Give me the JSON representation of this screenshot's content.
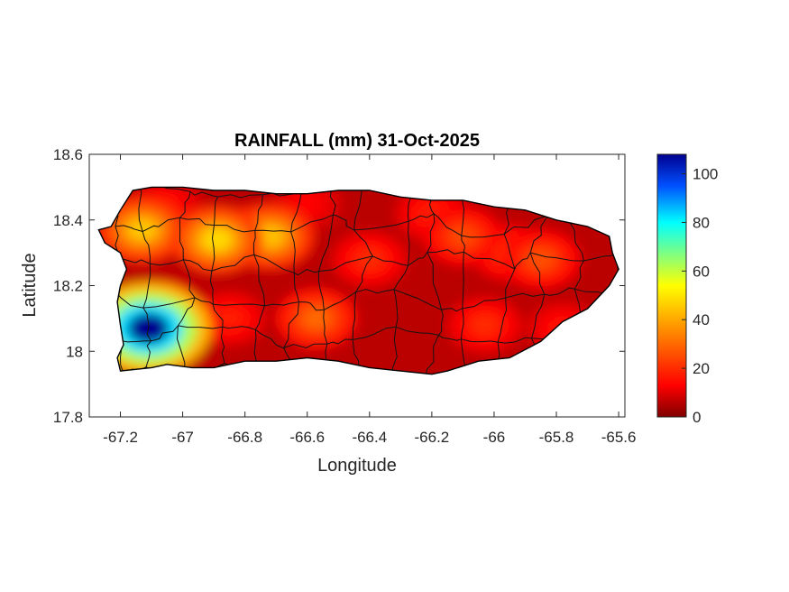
{
  "chart_data": {
    "type": "heatmap",
    "title": "RAINFALL (mm) 31-Oct-2025",
    "xlabel": "Longitude",
    "ylabel": "Latitude",
    "xlim": [
      -67.3,
      -65.58
    ],
    "ylim": [
      17.8,
      18.6
    ],
    "xticks": [
      -67.2,
      -67,
      -66.8,
      -66.6,
      -66.4,
      -66.2,
      -66,
      -65.8,
      -65.6
    ],
    "yticks": [
      17.8,
      18,
      18.2,
      18.4,
      18.6
    ],
    "colorbar": {
      "range": [
        0,
        108
      ],
      "ticks": [
        0,
        20,
        40,
        60,
        80,
        100
      ],
      "colormap": "jet (reversed)"
    },
    "region_outline": [
      [
        -67.27,
        18.37
      ],
      [
        -67.23,
        18.38
      ],
      [
        -67.2,
        18.43
      ],
      [
        -67.16,
        18.49
      ],
      [
        -67.1,
        18.5
      ],
      [
        -67.0,
        18.5
      ],
      [
        -66.9,
        18.49
      ],
      [
        -66.8,
        18.49
      ],
      [
        -66.7,
        18.48
      ],
      [
        -66.6,
        18.48
      ],
      [
        -66.5,
        18.49
      ],
      [
        -66.4,
        18.49
      ],
      [
        -66.3,
        18.47
      ],
      [
        -66.2,
        18.46
      ],
      [
        -66.1,
        18.46
      ],
      [
        -66.0,
        18.44
      ],
      [
        -65.9,
        18.43
      ],
      [
        -65.8,
        18.4
      ],
      [
        -65.7,
        18.38
      ],
      [
        -65.63,
        18.35
      ],
      [
        -65.62,
        18.3
      ],
      [
        -65.6,
        18.25
      ],
      [
        -65.63,
        18.2
      ],
      [
        -65.7,
        18.13
      ],
      [
        -65.78,
        18.09
      ],
      [
        -65.85,
        18.03
      ],
      [
        -65.95,
        17.98
      ],
      [
        -66.05,
        17.97
      ],
      [
        -66.15,
        17.94
      ],
      [
        -66.2,
        17.93
      ],
      [
        -66.3,
        17.94
      ],
      [
        -66.4,
        17.95
      ],
      [
        -66.5,
        17.97
      ],
      [
        -66.6,
        17.98
      ],
      [
        -66.7,
        17.97
      ],
      [
        -66.8,
        17.97
      ],
      [
        -66.9,
        17.95
      ],
      [
        -66.97,
        17.95
      ],
      [
        -67.05,
        17.96
      ],
      [
        -67.1,
        17.95
      ],
      [
        -67.2,
        17.94
      ],
      [
        -67.21,
        17.98
      ],
      [
        -67.19,
        18.02
      ],
      [
        -67.2,
        18.08
      ],
      [
        -67.21,
        18.15
      ],
      [
        -67.2,
        18.2
      ],
      [
        -67.18,
        18.25
      ],
      [
        -67.2,
        18.3
      ],
      [
        -67.25,
        18.33
      ]
    ],
    "rain_field": {
      "background_mm": 6,
      "maxima": [
        {
          "lon": -67.11,
          "lat": 18.07,
          "mm": 108
        },
        {
          "lon": -67.15,
          "lat": 18.09,
          "mm": 62
        },
        {
          "lon": -66.89,
          "lat": 18.34,
          "mm": 48
        },
        {
          "lon": -67.13,
          "lat": 18.37,
          "mm": 45
        },
        {
          "lon": -66.72,
          "lat": 18.35,
          "mm": 44
        },
        {
          "lon": -66.77,
          "lat": 18.35,
          "mm": 30
        },
        {
          "lon": -66.57,
          "lat": 18.1,
          "mm": 30
        },
        {
          "lon": -66.1,
          "lat": 18.35,
          "mm": 25
        },
        {
          "lon": -65.85,
          "lat": 18.28,
          "mm": 26
        },
        {
          "lon": -65.95,
          "lat": 18.3,
          "mm": 22
        },
        {
          "lon": -66.4,
          "lat": 18.28,
          "mm": 20
        },
        {
          "lon": -66.03,
          "lat": 18.08,
          "mm": 20
        },
        {
          "lon": -66.85,
          "lat": 18.1,
          "mm": 18
        },
        {
          "lon": -65.78,
          "lat": 18.07,
          "mm": 16
        },
        {
          "lon": -66.2,
          "lat": 18.42,
          "mm": 18
        },
        {
          "lon": -67.05,
          "lat": 18.14,
          "mm": 15
        },
        {
          "lon": -67.05,
          "lat": 18.45,
          "mm": 15
        },
        {
          "lon": -66.6,
          "lat": 18.45,
          "mm": 14
        }
      ]
    }
  }
}
